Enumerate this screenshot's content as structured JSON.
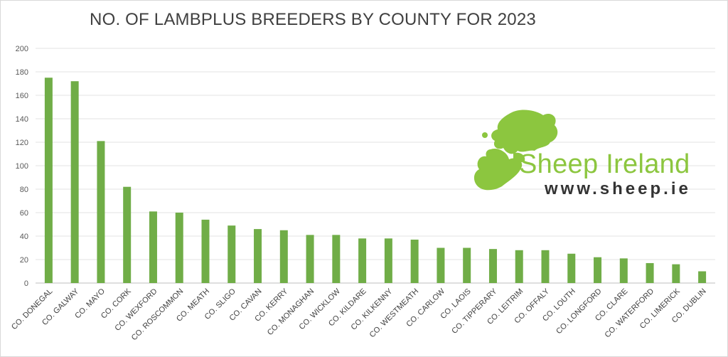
{
  "chart_data": {
    "type": "bar",
    "title": "NO. OF LAMBPLUS BREEDERS BY COUNTY FOR 2023",
    "xlabel": "",
    "ylabel": "",
    "ylim": [
      0,
      200
    ],
    "yticks": [
      0,
      20,
      40,
      60,
      80,
      100,
      120,
      140,
      160,
      180,
      200
    ],
    "grid": true,
    "legend": "none",
    "bar_color": "#70ad47",
    "categories": [
      "CO. DONEGAL",
      "CO. GALWAY",
      "CO. MAYO",
      "CO. CORK",
      "CO. WEXFORD",
      "CO. ROSCOMMON",
      "CO. MEATH",
      "CO. SLIGO",
      "CO. CAVAN",
      "CO. KERRY",
      "CO. MONAGHAN",
      "CO. WICKLOW",
      "CO. KILDARE",
      "CO. KILKENNY",
      "CO. WESTMEATH",
      "CO. CARLOW",
      "CO. LAOIS",
      "CO. TIPPERARY",
      "CO. LEITRIM",
      "CO. OFFALY",
      "CO. LOUTH",
      "CO. LONGFORD",
      "CO. CLARE",
      "CO. WATERFORD",
      "CO. LIMERICK",
      "CO. DUBLIN"
    ],
    "values": [
      175,
      172,
      121,
      82,
      61,
      60,
      54,
      49,
      46,
      45,
      41,
      41,
      38,
      38,
      37,
      30,
      30,
      29,
      28,
      28,
      25,
      22,
      21,
      17,
      16,
      10
    ]
  },
  "logo": {
    "name": "Sheep Ireland",
    "url": "www.sheep.ie",
    "color": "#8cc63f",
    "icon": "ireland-map-icon"
  }
}
